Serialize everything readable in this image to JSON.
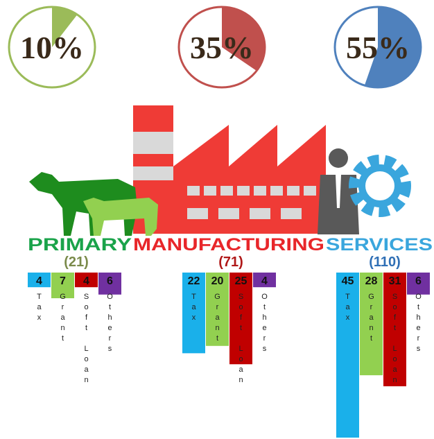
{
  "chart_data": [
    {
      "type": "pie",
      "values": [
        10,
        35,
        55
      ],
      "value_labels": [
        "10%",
        "35%",
        "55%"
      ],
      "colors": [
        "#9bbb59",
        "#c0504d",
        "#4f81bd"
      ]
    },
    {
      "type": "bar",
      "categories": [
        "PRIMARY",
        "MANUFACTURING",
        "SERVICES"
      ],
      "category_colors": [
        "#1aa34a",
        "#e8262a",
        "#3aa6dd"
      ],
      "totals": [
        21,
        71,
        110
      ],
      "total_labels": [
        "(21)",
        "(71)",
        "(110)"
      ],
      "total_colors": [
        "#7a8a4a",
        "#b01818",
        "#2f6fb5"
      ],
      "series": [
        {
          "name": "Tax",
          "color": "#1ab0ea",
          "values": [
            4,
            22,
            45
          ]
        },
        {
          "name": "Grant",
          "color": "#92d050",
          "values": [
            7,
            20,
            28
          ]
        },
        {
          "name": "Soft Loan",
          "color": "#c00000",
          "values": [
            4,
            25,
            31
          ]
        },
        {
          "name": "Others",
          "color": "#7030a0",
          "values": [
            6,
            4,
            6
          ]
        }
      ]
    }
  ]
}
